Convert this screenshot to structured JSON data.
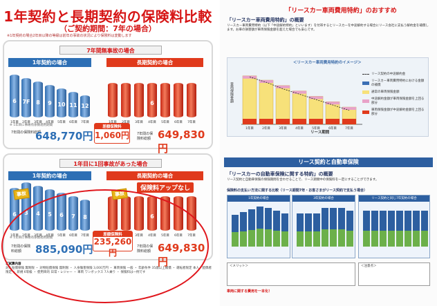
{
  "left": {
    "title": "1年契約と長期契約の保険料比較",
    "subtitle": "（ご契約期間：7年の場合）",
    "note": "※1年契約の場合2年目以降の等級は前年の事故の状況により保険料は変動します",
    "section1": {
      "head": "7年間無事故の場合",
      "one_year_label": "1年契約の場合",
      "long_term_label": "長期契約の場合",
      "years": [
        "1年目",
        "2年目",
        "3年目",
        "4年目",
        "5年目",
        "6年目",
        "7年目"
      ],
      "grades_one_year": [
        "6",
        "7F",
        "8",
        "9",
        "10",
        "11",
        "12"
      ],
      "grade_long": "6",
      "axis_note": "※ 1年目に事故有係数適用期間",
      "total_label_blue": "7年間の保険料総額",
      "total_blue": "648,770円",
      "diff_cap": "差額保険料",
      "diff_val": "1,060円",
      "total_label_red": "7年間の保険料総額",
      "total_red": "649,830円"
    },
    "section2": {
      "head": "1年目に1回事故があった場合",
      "one_year_label": "1年契約の場合",
      "long_term_label": "長期契約の場合",
      "years": [
        "1年目",
        "2年目",
        "3年目",
        "4年目",
        "5年目",
        "6年目",
        "7年目"
      ],
      "grades_one_year": [
        "6",
        "3",
        "4",
        "5",
        "6",
        "7",
        "8"
      ],
      "grade_long": "6",
      "accident_label": "事故",
      "no_up_label": "保険料アップなし",
      "axis_note": "※ 1年目に事故有係数適用期間",
      "total_label_blue": "7年間の保険料総額",
      "total_blue": "885,090円",
      "diff_cap": "差額保険料",
      "diff_val": "235,260円",
      "total_label_red": "7年間の保険料総額",
      "total_red": "649,830円"
    },
    "fineprint_title": "ご試算内容",
    "fineprint": "対人賠償保険 無制限 ・ 対物賠償保険 無制限 ・ 人身傷害保険 3,000万円 ・ 車両保険 一般 ・ 年齢条件 35歳以上補償 ・ 運転者限定 本人・配偶者限定 ・ 新規 6等級 ・ 使用目的 日常・レジャー ・ 車両 ワンボックス 7人乗り ・ 保険料は一例です"
  },
  "right": {
    "banner": "「リースカー車両費用特約」のおすすめ",
    "sub1": "「リースカー車両費用特約」の概要",
    "text1": "リースカー車両費用特約（以下「中途解約特約」といいます）を付帯するとリースカーを中途解約する場合にリース会社に支払う解約金を補償します。お車の損害額が車両保険金額を超えた場合でも安心です。",
    "image_title": "＜リースカー車両費用特約のイメージ＞",
    "ylabel": "車両保険金額",
    "xlabel": "リース期間",
    "legend": [
      "リース契約の中途解約金",
      "リースカー車両費用特約における金額の補償",
      "通常の車両保険金額",
      "中途解約金額が車両保険金額を上回る部分",
      "車両保険金額が中途解約金額を上回る部分"
    ],
    "years": [
      "1年目",
      "2年目",
      "3年目",
      "4年目",
      "5年目",
      "6年目",
      "7年目"
    ],
    "bar_values": [
      90,
      82,
      72,
      62,
      52,
      42,
      32
    ],
    "line_values": [
      88,
      78,
      66,
      56,
      46,
      36,
      26
    ],
    "bluebar": "リース契約と自動車保険",
    "sub2": "「リースカーの自動車保険に関する特約」の概要",
    "text2": "リース契約と自動車保険の保険期間を合わせることで、リース期間中の保険料を一定にすることができます。",
    "sub3": "保険料の支払い方法に関する比較（リース期間7年・お客さまがリース契約で支払う場合）",
    "panels": [
      "1年契約の場合",
      "3年契約の場合",
      "リース契約と同じ7年契約の場合"
    ],
    "memo1": "＜メリット＞",
    "memo2": "＜注意点＞",
    "foot": "車両に関する費用を一本化！"
  }
}
